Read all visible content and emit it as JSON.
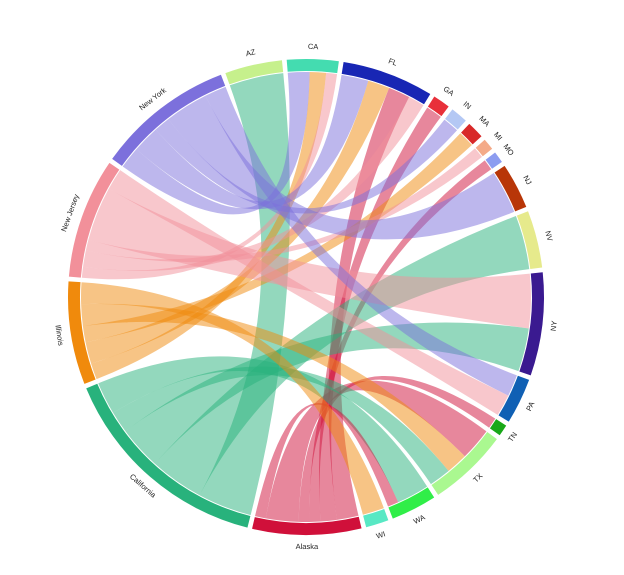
{
  "chart_data": {
    "type": "chord",
    "title": "",
    "segments": [
      {
        "name": "AZ",
        "color": "#c6f08c"
      },
      {
        "name": "CA",
        "color": "#44dcb0"
      },
      {
        "name": "FL",
        "color": "#1826b4"
      },
      {
        "name": "GA",
        "color": "#e8303a"
      },
      {
        "name": "IN",
        "color": "#b4c8f4"
      },
      {
        "name": "MA",
        "color": "#d82828"
      },
      {
        "name": "MI",
        "color": "#f4aa88"
      },
      {
        "name": "MO",
        "color": "#8c9cf0"
      },
      {
        "name": "NJ",
        "color": "#b83608"
      },
      {
        "name": "NV",
        "color": "#e6ea8c"
      },
      {
        "name": "NY",
        "color": "#3a1a90"
      },
      {
        "name": "PA",
        "color": "#1060b4"
      },
      {
        "name": "TN",
        "color": "#18a818"
      },
      {
        "name": "TX",
        "color": "#aaf890"
      },
      {
        "name": "WA",
        "color": "#30ee48"
      },
      {
        "name": "WI",
        "color": "#58e8c4"
      },
      {
        "name": "Alaska",
        "color": "#d0103a"
      },
      {
        "name": "California",
        "color": "#28b27c"
      },
      {
        "name": "Illinois",
        "color": "#f08a0c"
      },
      {
        "name": "New Jersey",
        "color": "#f2909a"
      },
      {
        "name": "New York",
        "color": "#7c70dc"
      }
    ],
    "flows": [
      {
        "from": "AZ",
        "to": "California",
        "value": 5
      },
      {
        "from": "CA",
        "to": "New York",
        "value": 2
      },
      {
        "from": "CA",
        "to": "Illinois",
        "value": 1.5
      },
      {
        "from": "CA",
        "to": "New Jersey",
        "value": 1
      },
      {
        "from": "FL",
        "to": "New York",
        "value": 2.5
      },
      {
        "from": "FL",
        "to": "Illinois",
        "value": 2
      },
      {
        "from": "FL",
        "to": "Alaska",
        "value": 2
      },
      {
        "from": "FL",
        "to": "New Jersey",
        "value": 1.5
      },
      {
        "from": "GA",
        "to": "Alaska",
        "value": 1.5
      },
      {
        "from": "IN",
        "to": "New York",
        "value": 1.5
      },
      {
        "from": "MA",
        "to": "Illinois",
        "value": 1.5
      },
      {
        "from": "MI",
        "to": "New Jersey",
        "value": 1
      },
      {
        "from": "MO",
        "to": "Alaska",
        "value": 1
      },
      {
        "from": "NJ",
        "to": "New York",
        "value": 4
      },
      {
        "from": "NV",
        "to": "California",
        "value": 5
      },
      {
        "from": "NY",
        "to": "New Jersey",
        "value": 5
      },
      {
        "from": "NY",
        "to": "California",
        "value": 4
      },
      {
        "from": "PA",
        "to": "New York",
        "value": 2
      },
      {
        "from": "PA",
        "to": "New Jersey",
        "value": 2
      },
      {
        "from": "TN",
        "to": "Alaska",
        "value": 1
      },
      {
        "from": "TX",
        "to": "Alaska",
        "value": 3
      },
      {
        "from": "TX",
        "to": "Illinois",
        "value": 2
      },
      {
        "from": "TX",
        "to": "California",
        "value": 2
      },
      {
        "from": "WA",
        "to": "California",
        "value": 3
      },
      {
        "from": "WA",
        "to": "Alaska",
        "value": 1
      },
      {
        "from": "WI",
        "to": "Illinois",
        "value": 2
      }
    ]
  }
}
